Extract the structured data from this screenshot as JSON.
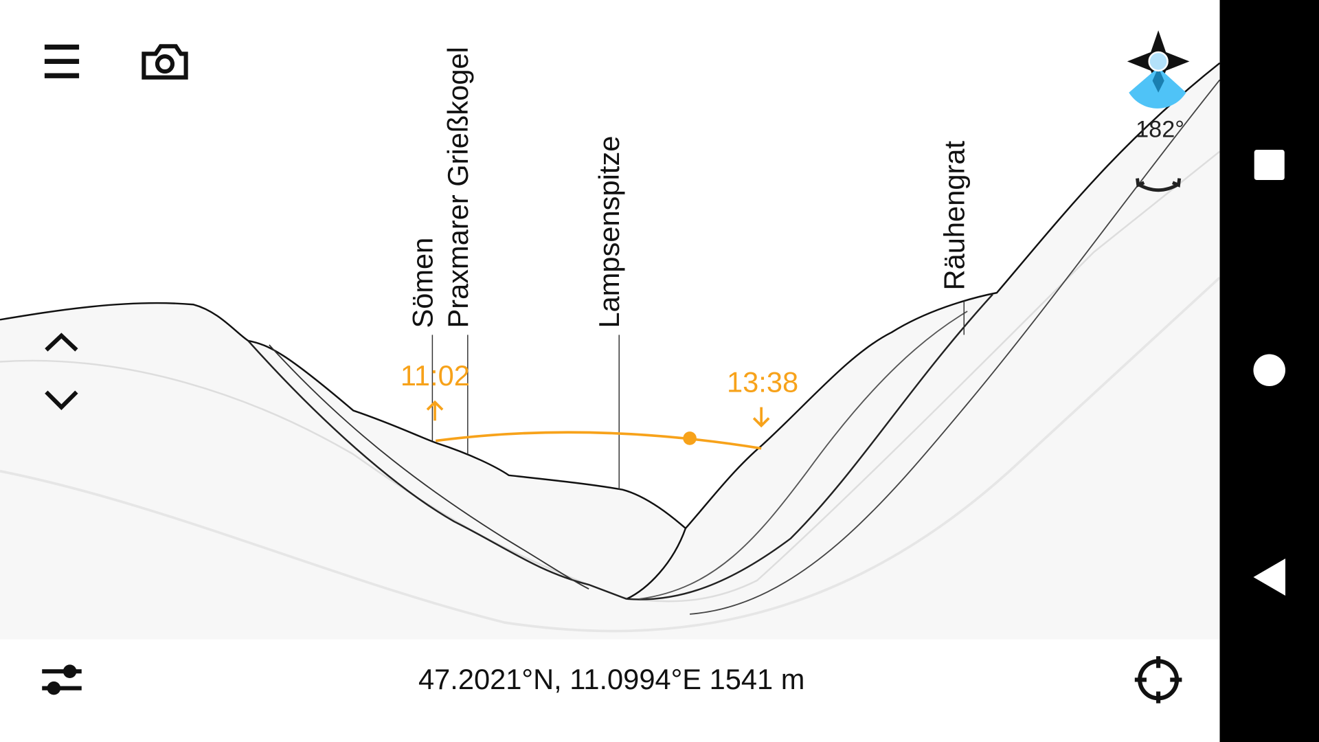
{
  "toolbar": {
    "menu_icon": "hamburger-menu-icon",
    "camera_icon": "camera-icon"
  },
  "peaks": [
    {
      "name": "Sömen"
    },
    {
      "name": "Praxmarer Grießkogel"
    },
    {
      "name": "Lampsenspitze"
    },
    {
      "name": "Räuhengrat"
    }
  ],
  "sun": {
    "rise_time": "11:02",
    "set_time": "13:38",
    "color": "#f7a21a"
  },
  "compass": {
    "heading": "182°",
    "accent": "#4fc3f7"
  },
  "footer": {
    "coordinates": "47.2021°N, 11.0994°E 1541 m"
  },
  "controls": {
    "tilt_up_icon": "chevron-up-icon",
    "tilt_down_icon": "chevron-down-icon",
    "settings_icon": "sliders-icon",
    "locate_icon": "crosshair-icon",
    "rotate_icon": "rotate-arrows-icon"
  },
  "navbar": {
    "recents_icon": "square-icon",
    "home_icon": "circle-icon",
    "back_icon": "back-triangle-icon"
  }
}
